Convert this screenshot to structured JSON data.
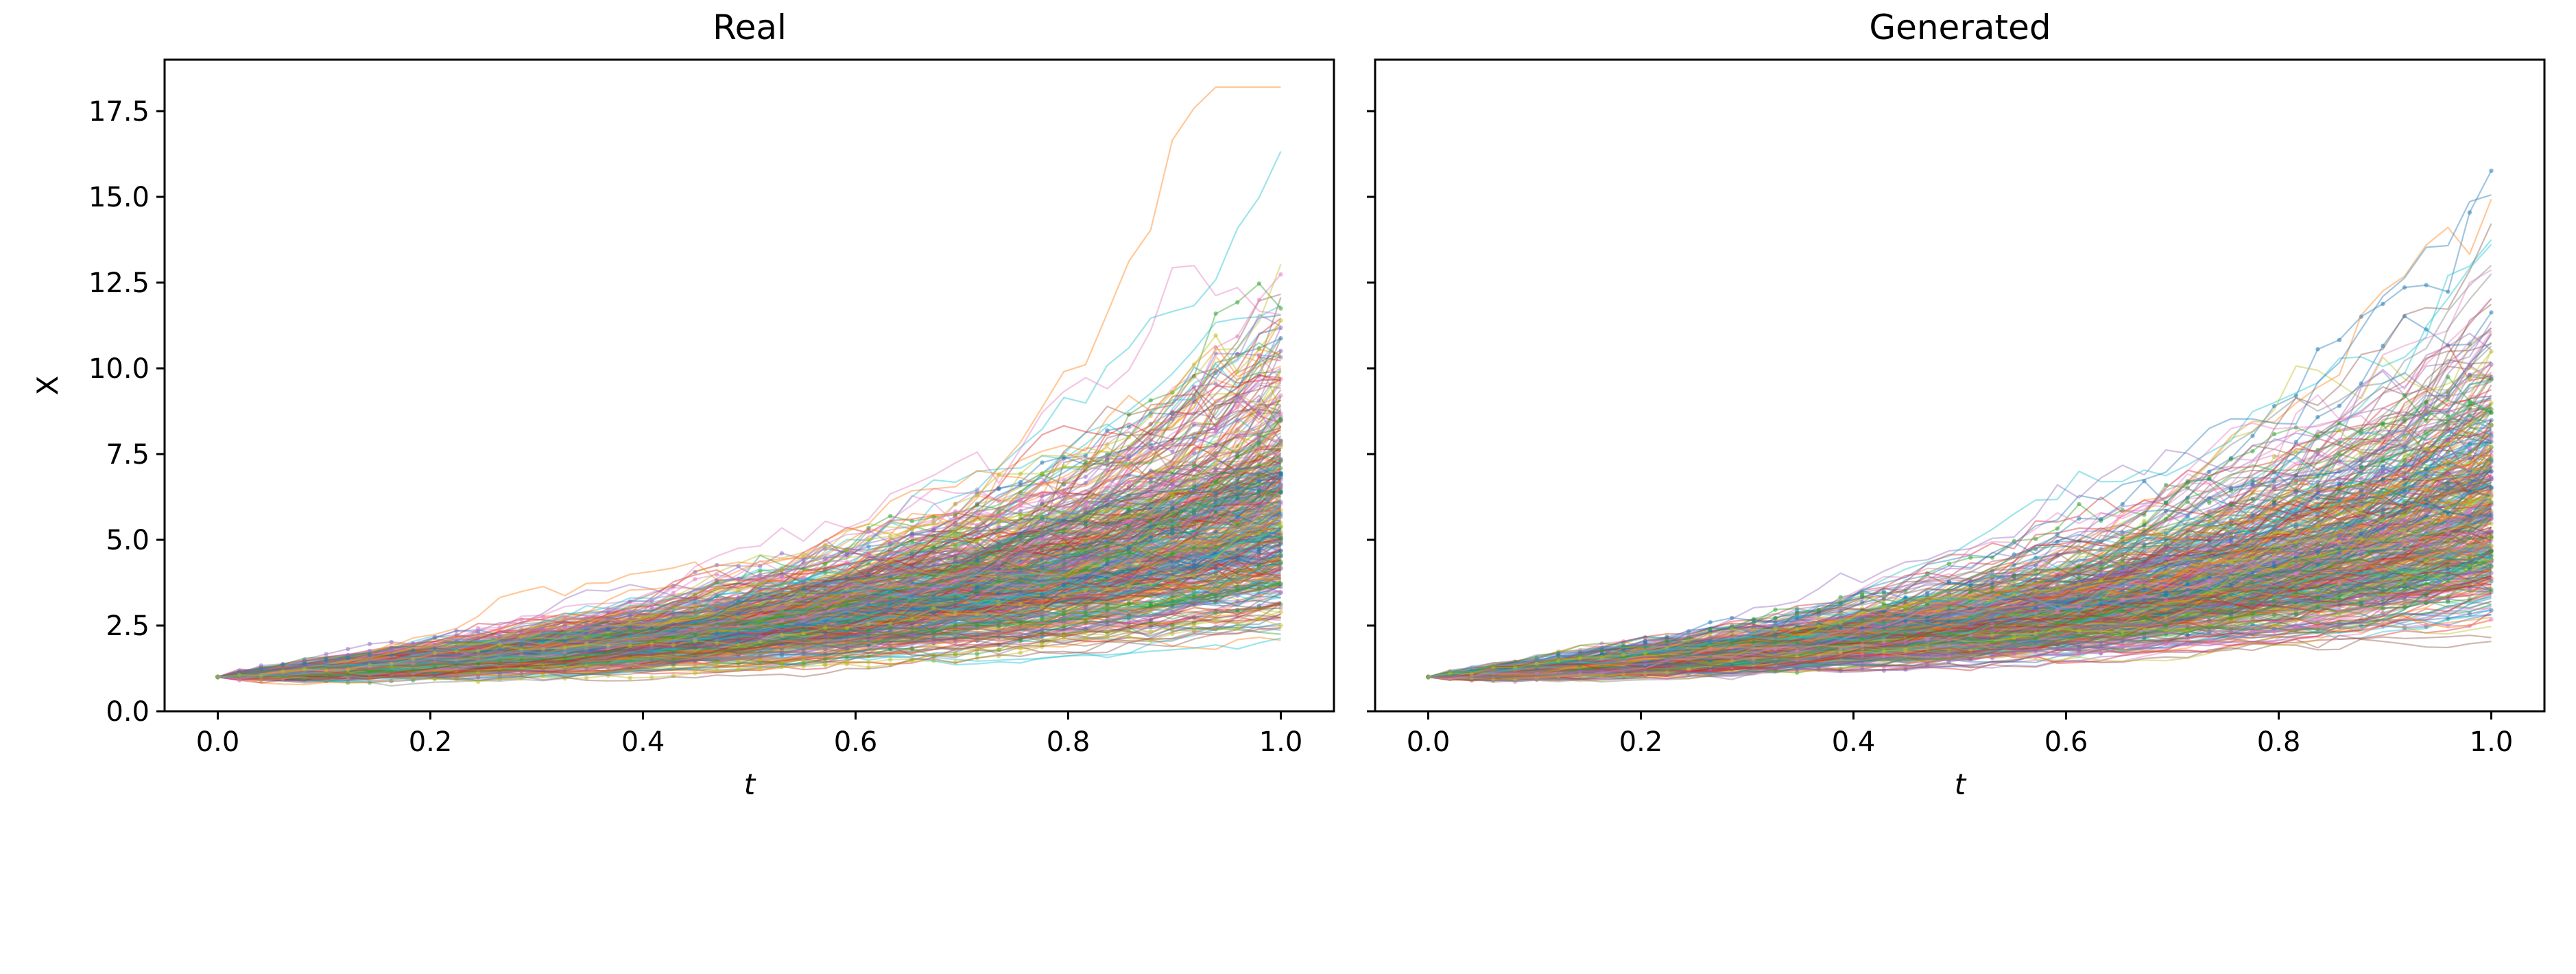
{
  "chart_data": [
    {
      "type": "line",
      "title": "Real",
      "xlabel": "t",
      "ylabel": "X",
      "xlim": [
        -0.05,
        1.05
      ],
      "ylim": [
        0.0,
        19.0
      ],
      "x_ticks": [
        "0.0",
        "0.2",
        "0.4",
        "0.6",
        "0.8",
        "1.0"
      ],
      "y_ticks": [
        "0.0",
        "2.5",
        "5.0",
        "7.5",
        "10.0",
        "12.5",
        "15.0",
        "17.5"
      ],
      "grid": false,
      "legend": "none",
      "markers": "small dots on each time step",
      "x": [
        0.0,
        0.0204,
        0.0408,
        0.0612,
        0.0816,
        0.102,
        0.1224,
        0.1429,
        0.1633,
        0.1837,
        0.2041,
        0.2245,
        0.2449,
        0.2653,
        0.2857,
        0.3061,
        0.3265,
        0.3469,
        0.3673,
        0.3878,
        0.4082,
        0.4286,
        0.449,
        0.4694,
        0.4898,
        0.5102,
        0.5306,
        0.551,
        0.5714,
        0.5918,
        0.6122,
        0.6327,
        0.6531,
        0.6735,
        0.6939,
        0.7143,
        0.7347,
        0.7551,
        0.7755,
        0.7959,
        0.8163,
        0.8367,
        0.8571,
        0.8776,
        0.898,
        0.9184,
        0.9388,
        0.9592,
        0.9796,
        1.0
      ],
      "series_count": 500,
      "start_value": 1.0,
      "end_value_range": [
        2.6,
        17.5
      ],
      "max_value": 18.2
    },
    {
      "type": "line",
      "title": "Generated",
      "xlabel": "t",
      "ylabel": "",
      "xlim": [
        -0.05,
        1.05
      ],
      "ylim": [
        0.0,
        19.0
      ],
      "x_ticks": [
        "0.0",
        "0.2",
        "0.4",
        "0.6",
        "0.8",
        "1.0"
      ],
      "y_ticks": [],
      "shared_y": true,
      "grid": false,
      "legend": "none",
      "markers": "small dots on each time step",
      "x": [
        0.0,
        0.0204,
        0.0408,
        0.0612,
        0.0816,
        0.102,
        0.1224,
        0.1429,
        0.1633,
        0.1837,
        0.2041,
        0.2245,
        0.2449,
        0.2653,
        0.2857,
        0.3061,
        0.3265,
        0.3469,
        0.3673,
        0.3878,
        0.4082,
        0.4286,
        0.449,
        0.4694,
        0.4898,
        0.5102,
        0.5306,
        0.551,
        0.5714,
        0.5918,
        0.6122,
        0.6327,
        0.6531,
        0.6735,
        0.6939,
        0.7143,
        0.7347,
        0.7551,
        0.7755,
        0.7959,
        0.8163,
        0.8367,
        0.8571,
        0.8776,
        0.898,
        0.9184,
        0.9388,
        0.9592,
        0.9796,
        1.0
      ],
      "series_count": 500,
      "start_value": 1.0,
      "end_value_range": [
        2.6,
        17.0
      ],
      "max_value": 17.0
    }
  ],
  "colors": {
    "palette": [
      "#1f77b4",
      "#ff7f0e",
      "#2ca02c",
      "#d62728",
      "#9467bd",
      "#8c564b",
      "#e377c2",
      "#7f7f7f",
      "#bcbd22",
      "#17becf"
    ],
    "axis": "#000000",
    "background": "#ffffff"
  }
}
